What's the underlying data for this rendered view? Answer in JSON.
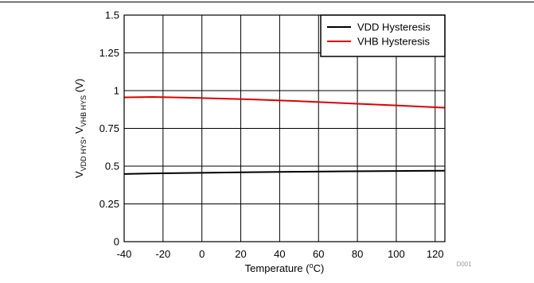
{
  "chart_data": {
    "type": "line",
    "title": "",
    "xlabel": "Temperature (",
    "xlabel_sup": "o",
    "xlabel_tail": "C)",
    "ylabel_parts": [
      {
        "text": "V",
        "sub": false
      },
      {
        "text": "VDD HYS",
        "sub": true
      },
      {
        "text": ", V",
        "sub": false
      },
      {
        "text": "VHB HYS",
        "sub": true
      },
      {
        "text": " (V)",
        "sub": false
      }
    ],
    "xlim": [
      -40,
      125
    ],
    "ylim": [
      0,
      1.5
    ],
    "xticks": [
      -40,
      -20,
      0,
      20,
      40,
      60,
      80,
      100,
      120
    ],
    "xtick_labels": [
      "-40",
      "-20",
      "0",
      "20",
      "40",
      "60",
      "80",
      "100",
      "120"
    ],
    "yticks": [
      0,
      0.25,
      0.5,
      0.75,
      1,
      1.25,
      1.5
    ],
    "ytick_labels": [
      "0",
      "0.25",
      "0.5",
      "0.75",
      "1",
      "1.25",
      "1.5"
    ],
    "grid": true,
    "legend_position": "top-right",
    "series": [
      {
        "name": "VDD Hysteresis",
        "color": "#000000",
        "x": [
          -40,
          -25,
          0,
          25,
          50,
          75,
          100,
          125
        ],
        "y": [
          0.448,
          0.452,
          0.456,
          0.46,
          0.463,
          0.466,
          0.468,
          0.47
        ]
      },
      {
        "name": "VHB Hysteresis",
        "color": "#e00000",
        "x": [
          -40,
          -25,
          0,
          25,
          50,
          75,
          100,
          125
        ],
        "y": [
          0.955,
          0.958,
          0.951,
          0.942,
          0.93,
          0.916,
          0.902,
          0.887
        ]
      }
    ],
    "code": "D001"
  }
}
